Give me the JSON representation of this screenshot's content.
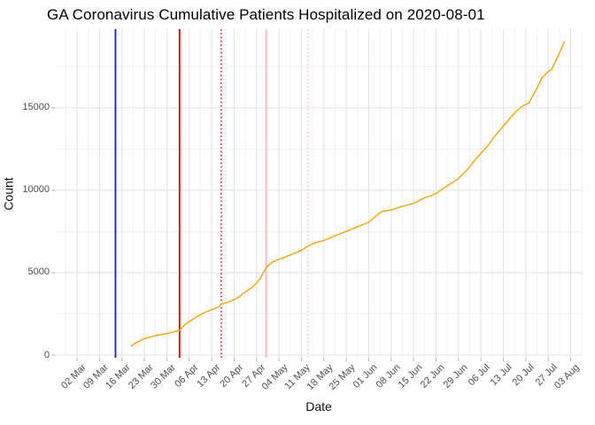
{
  "window": {
    "kind": "plot-viewer",
    "background": "#ffffff"
  },
  "chart_data": {
    "type": "line",
    "title": "GA Coronavirus Cumulative Patients Hospitalized on 2020-08-01",
    "xlabel": "Date",
    "ylabel": "Count",
    "grid": true,
    "legend": "none",
    "x_tick_labels": [
      "02 Mar",
      "09 Mar",
      "16 Mar",
      "23 Mar",
      "30 Mar",
      "06 Apr",
      "13 Apr",
      "20 Apr",
      "27 Apr",
      "04 May",
      "11 May",
      "18 May",
      "25 May",
      "01 Jun",
      "08 Jun",
      "15 Jun",
      "22 Jun",
      "29 Jun",
      "06 Jul",
      "13 Jul",
      "20 Jul",
      "27 Jul",
      "03 Aug"
    ],
    "y_tick_labels": [
      "0",
      "5000",
      "10000",
      "15000"
    ],
    "y_ticks": [
      0,
      5000,
      10000,
      15000
    ],
    "y_minor_ticks": [
      2500,
      7500,
      12500,
      17500
    ],
    "ylim": [
      0,
      19800
    ],
    "x_range": [
      "2020-03-02",
      "2020-08-03"
    ],
    "colors": {
      "series_line": "#F2A30F",
      "grid_major": "#E3E3E3",
      "grid_minor": "#EFEFEF",
      "axis_text": "#4d4d4d",
      "tick_mark": "#b0b0b0",
      "event_navy": "#2222CC",
      "event_red": "#E00000",
      "event_pink": "#F9B9C5"
    },
    "event_vlines": [
      {
        "name": "navy-solid-event-line",
        "date": "2020-03-14",
        "color": "#2222CC",
        "style": "solid"
      },
      {
        "name": "red-solid-event-line",
        "date": "2020-04-03",
        "color": "#E00000",
        "style": "solid"
      },
      {
        "name": "red-dotted-event-line",
        "date": "2020-04-16",
        "color": "#E00000",
        "style": "dotted"
      },
      {
        "name": "pink-solid-event-line",
        "date": "2020-04-30",
        "color": "#F9B9C5",
        "style": "solid"
      },
      {
        "name": "pink-dotted-event-line",
        "date": "2020-05-13",
        "color": "#F9B9C5",
        "style": "dotted"
      }
    ],
    "series": [
      {
        "name": "cumulative-patients-hospitalized",
        "color": "#F2A30F",
        "points": [
          [
            "2020-03-19",
            550
          ],
          [
            "2020-03-20",
            700
          ],
          [
            "2020-03-21",
            800
          ],
          [
            "2020-03-23",
            1000
          ],
          [
            "2020-03-25",
            1100
          ],
          [
            "2020-03-27",
            1200
          ],
          [
            "2020-03-30",
            1300
          ],
          [
            "2020-04-01",
            1400
          ],
          [
            "2020-04-03",
            1500
          ],
          [
            "2020-04-04",
            1700
          ],
          [
            "2020-04-05",
            1900
          ],
          [
            "2020-04-07",
            2150
          ],
          [
            "2020-04-09",
            2400
          ],
          [
            "2020-04-11",
            2600
          ],
          [
            "2020-04-13",
            2750
          ],
          [
            "2020-04-15",
            2900
          ],
          [
            "2020-04-16",
            3100
          ],
          [
            "2020-04-18",
            3200
          ],
          [
            "2020-04-20",
            3350
          ],
          [
            "2020-04-22",
            3600
          ],
          [
            "2020-04-24",
            3900
          ],
          [
            "2020-04-26",
            4150
          ],
          [
            "2020-04-28",
            4600
          ],
          [
            "2020-04-30",
            5300
          ],
          [
            "2020-05-02",
            5650
          ],
          [
            "2020-05-04",
            5800
          ],
          [
            "2020-05-06",
            5950
          ],
          [
            "2020-05-08",
            6100
          ],
          [
            "2020-05-11",
            6350
          ],
          [
            "2020-05-13",
            6600
          ],
          [
            "2020-05-15",
            6800
          ],
          [
            "2020-05-18",
            6950
          ],
          [
            "2020-05-21",
            7200
          ],
          [
            "2020-05-23",
            7350
          ],
          [
            "2020-05-25",
            7500
          ],
          [
            "2020-05-28",
            7750
          ],
          [
            "2020-06-01",
            8050
          ],
          [
            "2020-06-03",
            8400
          ],
          [
            "2020-06-05",
            8700
          ],
          [
            "2020-06-08",
            8800
          ],
          [
            "2020-06-11",
            9000
          ],
          [
            "2020-06-15",
            9200
          ],
          [
            "2020-06-18",
            9500
          ],
          [
            "2020-06-22",
            9800
          ],
          [
            "2020-06-25",
            10200
          ],
          [
            "2020-06-29",
            10700
          ],
          [
            "2020-07-02",
            11300
          ],
          [
            "2020-07-04",
            11800
          ],
          [
            "2020-07-06",
            12250
          ],
          [
            "2020-07-08",
            12650
          ],
          [
            "2020-07-10",
            13200
          ],
          [
            "2020-07-13",
            13900
          ],
          [
            "2020-07-15",
            14350
          ],
          [
            "2020-07-17",
            14800
          ],
          [
            "2020-07-19",
            15100
          ],
          [
            "2020-07-21",
            15300
          ],
          [
            "2020-07-23",
            16000
          ],
          [
            "2020-07-25",
            16800
          ],
          [
            "2020-07-27",
            17200
          ],
          [
            "2020-07-28",
            17300
          ],
          [
            "2020-07-30",
            18100
          ],
          [
            "2020-08-01",
            19000
          ]
        ]
      }
    ]
  }
}
